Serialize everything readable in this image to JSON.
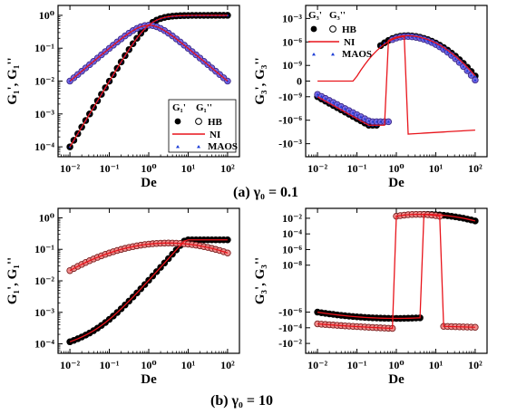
{
  "captions": {
    "a": "(a) γ₀ = 0.1",
    "b": "(b) γ₀ = 10"
  },
  "legend": {
    "header1": "G₁'",
    "header2": "G₁''",
    "header3": "G₃'",
    "header4": "G₃''",
    "hb": "HB",
    "ni": "NI",
    "maos": "MAOS"
  },
  "colors": {
    "ni_line": "#e8141b",
    "marker_a": "#7b6ae6",
    "marker_b": "#f08c8c",
    "maos": "#1a3bd6"
  },
  "chart_data": [
    {
      "type": "line",
      "id": "a1",
      "xlabel": "De",
      "ylabel": "G₁', G₁''",
      "xscale": "log",
      "yscale": "log",
      "xlim": [
        0.005,
        200
      ],
      "ylim": [
        5e-05,
        2
      ],
      "xticks": [
        "10⁻²",
        "10⁻¹",
        "10⁰",
        "10¹",
        "10²"
      ],
      "yticks": [
        "10⁻⁴",
        "10⁻³",
        "10⁻²",
        "10⁻¹",
        "10⁰"
      ],
      "series": [
        {
          "name": "G₁'",
          "model": "De²/(1+De²)",
          "x_range": [
            0.01,
            100
          ]
        },
        {
          "name": "G₁''",
          "model": "De/(1+De²)",
          "x_range": [
            0.01,
            100
          ]
        }
      ],
      "legend_position": "bottom-right"
    },
    {
      "type": "line",
      "id": "a2",
      "xlabel": "De",
      "ylabel": "G₃', G₃''",
      "xscale": "log",
      "yscale": "symlog",
      "xlim": [
        0.005,
        200
      ],
      "yticks": [
        "10⁻³",
        "10⁻⁶",
        "10⁻⁹",
        "0",
        "-10⁻⁹",
        "-10⁻⁶",
        "-10⁻³"
      ],
      "x_range": [
        0.01,
        100
      ],
      "shape": {
        "positive_peak_log10": -4.8,
        "negative_end_log10": -4.0
      },
      "ni_sign_changes": {
        "G₃'": 0.62,
        "G₃''": 1.6,
        "negative_jump": 0.2
      },
      "legend_position": "top-left"
    },
    {
      "type": "line",
      "id": "b1",
      "xlabel": "De",
      "ylabel": "G₁', G₁''",
      "xscale": "log",
      "yscale": "log",
      "xlim": [
        0.005,
        200
      ],
      "ylim": [
        5e-05,
        2
      ],
      "xticks": [
        "10⁻²",
        "10⁻¹",
        "10⁰",
        "10¹",
        "10²"
      ],
      "yticks": [
        "10⁻⁴",
        "10⁻³",
        "10⁻²",
        "10⁻¹",
        "10⁰"
      ],
      "peak_G1pp": {
        "x": 3,
        "y": 0.16
      },
      "G1p_plateau": 0.2
    },
    {
      "type": "line",
      "id": "b2",
      "xlabel": "De",
      "ylabel": "G₃', G₃''",
      "xscale": "log",
      "yscale": "symlog",
      "xlim": [
        0.005,
        200
      ],
      "yticks": [
        "10⁻²",
        "10⁻⁴",
        "10⁻⁶",
        "10⁻⁸",
        "-10⁻⁶",
        "-10⁻⁴",
        "-10⁻²"
      ],
      "ni_sign_changes": {
        "G₃''": 0.95,
        "G₃'": 4.2,
        "negative_jump": 13
      },
      "positive_peak": {
        "x": 4,
        "value": 0.03
      }
    }
  ]
}
